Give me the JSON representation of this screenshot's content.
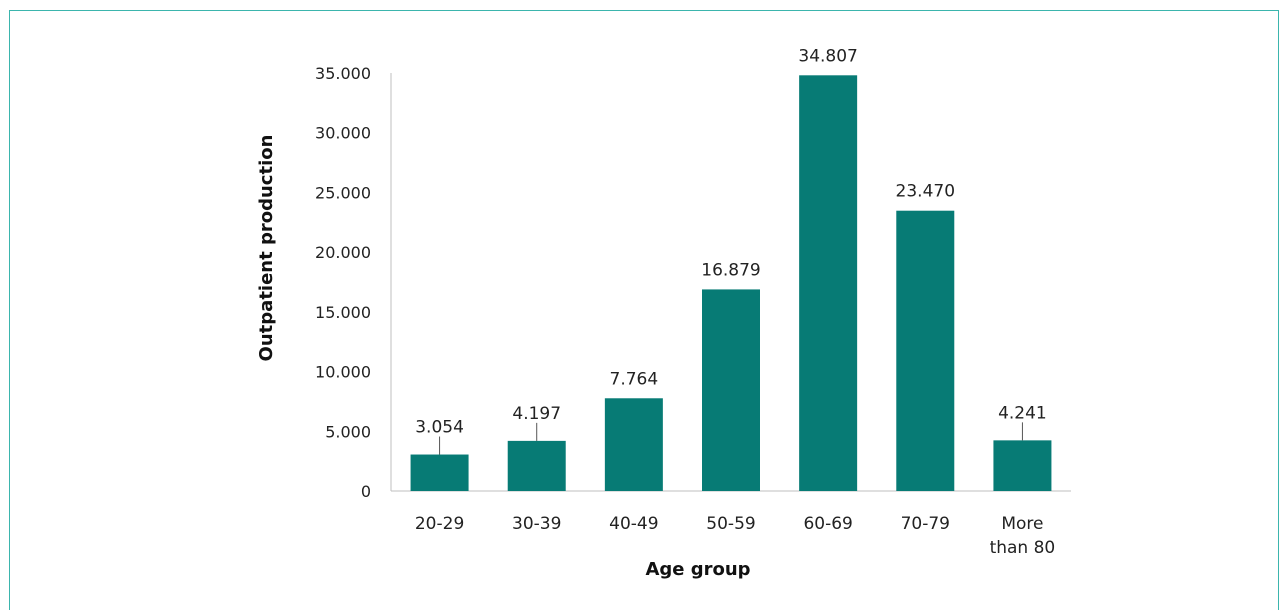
{
  "colors": {
    "bar": "#077b75",
    "frame": "#3bb5ad",
    "axis": "#bfbfbf",
    "leader": "#555555"
  },
  "chart_data": {
    "type": "bar",
    "title": "",
    "xlabel": "Age group",
    "ylabel": "Outpatient production",
    "categories": [
      [
        "20-29"
      ],
      [
        "30-39"
      ],
      [
        "40-49"
      ],
      [
        "50-59"
      ],
      [
        "60-69"
      ],
      [
        "70-79"
      ],
      [
        "More",
        "than 80"
      ]
    ],
    "values": [
      3054,
      4197,
      7764,
      16879,
      34807,
      23470,
      4241
    ],
    "value_labels": [
      "3.054",
      "4.197",
      "7.764",
      "16.879",
      "34.807",
      "23.470",
      "4.241"
    ],
    "ylim": [
      0,
      35000
    ],
    "yticks": [
      0,
      5000,
      10000,
      15000,
      20000,
      25000,
      30000,
      35000
    ],
    "ytick_labels": [
      "0",
      "5.000",
      "10.000",
      "15.000",
      "20.000",
      "25.000",
      "30.000",
      "35.000"
    ],
    "grid": false,
    "legend": "none"
  }
}
